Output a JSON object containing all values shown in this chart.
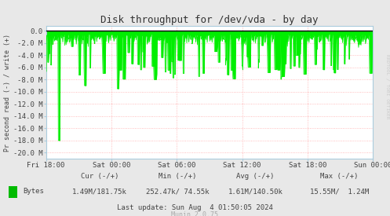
{
  "title": "Disk throughput for /dev/vda - by day",
  "ylabel": "Pr second read (-) / write (+)",
  "background_color": "#e8e8e8",
  "plot_bg_color": "#ffffff",
  "grid_color": "#ffaaaa",
  "grid_linestyle": ":",
  "ylim": [
    -21000000,
    800000
  ],
  "yticks": [
    0,
    -2000000,
    -4000000,
    -6000000,
    -8000000,
    -10000000,
    -12000000,
    -14000000,
    -16000000,
    -18000000,
    -20000000
  ],
  "ytick_labels": [
    "0.0",
    "-2.0 M",
    "-4.0 M",
    "-6.0 M",
    "-8.0 M",
    "-10.0 M",
    "-12.0 M",
    "-14.0 M",
    "-16.0 M",
    "-18.0 M",
    "-20.0 M"
  ],
  "xtick_labels": [
    "Fri 18:00",
    "Sat 00:00",
    "Sat 06:00",
    "Sat 12:00",
    "Sat 18:00",
    "Sun 00:00"
  ],
  "line_color_bytes": "#00ee00",
  "zero_line_color": "#000000",
  "legend_label": "Bytes",
  "legend_color": "#00bb00",
  "footer_cur": "Cur (-/+)",
  "footer_min": "Min (-/+)",
  "footer_avg": "Avg (-/+)",
  "footer_max": "Max (-/+)",
  "footer_cur_val": "1.49M/181.75k",
  "footer_min_val": "252.47k/ 74.55k",
  "footer_avg_val": "1.61M/140.50k",
  "footer_max_val": "15.55M/  1.24M",
  "footer_last_update": "Last update: Sun Aug  4 01:50:05 2024",
  "footer_munin": "Munin 2.0.75",
  "rrdtool_text": "RRDTOOL / TOBI OETIKER",
  "title_fontsize": 9,
  "axis_fontsize": 6.5,
  "footer_fontsize": 6.5,
  "num_points": 800
}
